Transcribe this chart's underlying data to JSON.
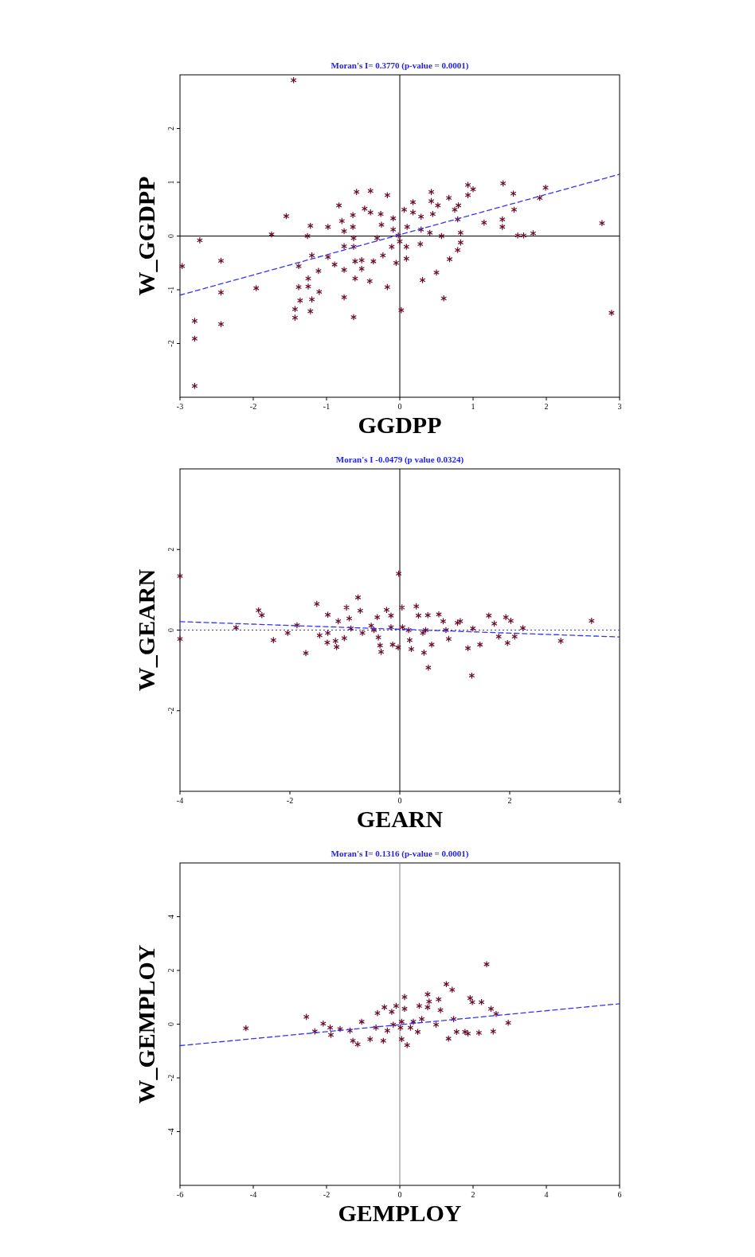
{
  "chart_data": [
    {
      "type": "scatter",
      "title": "Moran's I= 0.3770  (p-value = 0.0001)",
      "xlabel": "GGDPP",
      "ylabel": "W_GGDPP",
      "xlim": [
        -3,
        3
      ],
      "ylim": [
        -3,
        3
      ],
      "xticks": [
        -3,
        -2,
        -1,
        0,
        1,
        2,
        3
      ],
      "yticks": [
        -2,
        -1,
        0,
        1,
        2
      ],
      "marker": "cross",
      "grid": false,
      "ref_lines": [
        {
          "axis": "x",
          "value": 0,
          "color": "#000000",
          "line_style": "solid"
        },
        {
          "axis": "y",
          "value": 0,
          "color": "#000000",
          "line_style": "solid"
        }
      ],
      "series": [
        {
          "type": "scatter",
          "color": "#6b0a2a",
          "x": [
            -1.45,
            -2.73,
            -2.97,
            -2.44,
            -2.44,
            -2.44,
            -2.8,
            -2.8,
            -2.8,
            -1.96,
            -1.75,
            -1.55,
            -1.38,
            -1.38,
            -1.36,
            -1.43,
            -1.43,
            -1.25,
            -1.25,
            -1.22,
            -1.26,
            -1.2,
            -1.2,
            -1.22,
            -1.11,
            -1.1,
            -0.98,
            -0.98,
            -0.89,
            -0.83,
            -0.79,
            -0.76,
            -0.76,
            -0.76,
            -0.76,
            -0.64,
            -0.64,
            -0.63,
            -0.63,
            -0.61,
            -0.61,
            -0.63,
            -0.59,
            -0.52,
            -0.52,
            -0.48,
            -0.41,
            -0.4,
            -0.4,
            -0.36,
            -0.31,
            -0.26,
            -0.25,
            -0.23,
            -0.17,
            -0.17,
            -0.09,
            -0.09,
            -0.11,
            -0.05,
            -0.02,
            0.0,
            0.02,
            0.06,
            0.09,
            0.09,
            0.1,
            0.18,
            0.18,
            0.29,
            0.29,
            0.28,
            0.31,
            0.43,
            0.43,
            0.45,
            0.41,
            0.52,
            0.5,
            0.57,
            0.6,
            0.67,
            0.68,
            0.75,
            0.79,
            0.8,
            0.83,
            0.83,
            0.79,
            0.93,
            0.93,
            1.0,
            1.15,
            1.41,
            1.4,
            1.4,
            1.55,
            1.56,
            1.61,
            1.69,
            1.82,
            1.91,
            1.99,
            2.76,
            2.89
          ],
          "values": [
            2.9,
            -0.08,
            -0.56,
            -0.46,
            -1.05,
            -1.64,
            -1.58,
            -1.91,
            -2.79,
            -0.97,
            0.03,
            0.37,
            -0.56,
            -0.95,
            -1.2,
            -1.36,
            -1.52,
            -0.79,
            -0.94,
            0.19,
            0.0,
            -0.36,
            -1.18,
            -1.4,
            -0.65,
            -1.04,
            0.17,
            -0.39,
            -0.53,
            0.57,
            0.28,
            0.09,
            -0.19,
            -0.63,
            -1.14,
            0.39,
            0.17,
            -0.04,
            -0.2,
            -0.47,
            -0.79,
            -1.51,
            0.82,
            -0.45,
            -0.61,
            0.51,
            -0.84,
            0.84,
            0.44,
            -0.47,
            -0.04,
            0.41,
            0.21,
            -0.36,
            0.76,
            -0.95,
            0.33,
            0.12,
            -0.2,
            -0.5,
            0.01,
            -0.1,
            -1.38,
            0.49,
            -0.2,
            -0.42,
            0.17,
            0.63,
            0.44,
            0.36,
            0.12,
            -0.15,
            -0.82,
            0.82,
            0.65,
            0.41,
            0.06,
            0.57,
            -0.68,
            0.0,
            -1.16,
            0.71,
            -0.43,
            0.49,
            0.31,
            0.57,
            0.06,
            -0.12,
            -0.26,
            0.95,
            0.76,
            0.87,
            0.25,
            0.98,
            0.31,
            0.17,
            0.79,
            0.49,
            0.01,
            0.01,
            0.05,
            0.71,
            0.9,
            0.24,
            -1.43
          ]
        },
        {
          "type": "line",
          "color": "#3333ff",
          "line_style": "dashed",
          "marker": "none",
          "x": [
            -3,
            3
          ],
          "values": [
            -1.1,
            1.15
          ]
        }
      ]
    },
    {
      "type": "scatter",
      "title": "Moran's I   -0.0479 (p value    0.0324)",
      "xlabel": "GEARN",
      "ylabel": "W_GEARN",
      "xlim": [
        -4,
        4
      ],
      "ylim": [
        -4,
        4
      ],
      "xticks": [
        -4,
        -2,
        0,
        2,
        4
      ],
      "yticks": [
        -2,
        0,
        2
      ],
      "marker": "cross",
      "grid": false,
      "ref_lines": [
        {
          "axis": "x",
          "value": 0,
          "color": "#000000",
          "line_style": "solid"
        },
        {
          "axis": "y",
          "value": 0,
          "color": "#3333ff",
          "line_style": "dotted"
        }
      ],
      "series": [
        {
          "type": "scatter",
          "color": "#6b0a2a",
          "x": [
            -4.0,
            -4.0,
            -2.98,
            -2.57,
            -2.51,
            -2.3,
            -2.04,
            -1.87,
            -1.71,
            -1.51,
            -1.46,
            -1.31,
            -1.31,
            -1.32,
            -1.15,
            -1.17,
            -1.12,
            -1.01,
            -0.97,
            -0.92,
            -0.76,
            -0.72,
            -0.68,
            -0.52,
            -0.41,
            -0.39,
            -0.36,
            -0.34,
            -0.24,
            -0.16,
            -0.13,
            -0.02,
            0.04,
            -0.03,
            0.05,
            0.18,
            0.21,
            0.3,
            0.34,
            0.42,
            0.44,
            0.52,
            0.51,
            0.58,
            0.71,
            0.79,
            0.89,
            1.1,
            1.24,
            1.31,
            1.33,
            1.46,
            1.62,
            1.72,
            1.8,
            1.93,
            1.96,
            2.02,
            2.09,
            2.24,
            2.93,
            3.49,
            -0.89,
            -0.47,
            -0.16,
            0.16,
            0.47,
            0.84,
            1.05
          ],
          "values": [
            1.34,
            -0.22,
            0.06,
            0.49,
            0.37,
            -0.25,
            -0.07,
            0.12,
            -0.57,
            0.65,
            -0.13,
            0.38,
            -0.07,
            -0.31,
            -0.42,
            -0.27,
            0.22,
            -0.2,
            0.56,
            0.29,
            0.81,
            0.48,
            -0.07,
            0.11,
            0.32,
            -0.18,
            -0.38,
            -0.54,
            0.5,
            0.36,
            -0.36,
            1.4,
            0.56,
            -0.43,
            0.07,
            -0.25,
            -0.47,
            0.59,
            0.36,
            -0.07,
            -0.56,
            -0.93,
            0.37,
            -0.36,
            0.39,
            0.22,
            -0.22,
            0.22,
            -0.45,
            -1.13,
            0.04,
            -0.36,
            0.36,
            0.16,
            -0.16,
            0.32,
            -0.32,
            0.23,
            -0.16,
            0.05,
            -0.27,
            0.23,
            0.04,
            0.0,
            0.07,
            0.0,
            0.0,
            0.0,
            0.18
          ]
        },
        {
          "type": "line",
          "color": "#3333ff",
          "line_style": "dashed",
          "marker": "none",
          "x": [
            -4,
            4
          ],
          "values": [
            0.21,
            -0.17
          ]
        }
      ]
    },
    {
      "type": "scatter",
      "title": "Moran's I= 0.1316  (p-value = 0.0001)",
      "xlabel": "GEMPLOY",
      "ylabel": "W_GEMPLOY",
      "xlim": [
        -6,
        6
      ],
      "ylim": [
        -6,
        6
      ],
      "xticks": [
        -6,
        -4,
        -2,
        0,
        2,
        4,
        6
      ],
      "yticks": [
        -4,
        -2,
        0,
        2,
        4
      ],
      "marker": "cross",
      "grid": false,
      "ref_lines": [
        {
          "axis": "x",
          "value": 0,
          "color": "#808080",
          "line_style": "solid"
        }
      ],
      "series": [
        {
          "type": "scatter",
          "color": "#6b0a2a",
          "x": [
            -4.2,
            -2.55,
            -2.32,
            -2.09,
            -1.88,
            -1.9,
            -1.63,
            -1.36,
            -1.28,
            -1.15,
            -1.04,
            -0.81,
            -0.65,
            -0.61,
            -0.45,
            -0.42,
            -0.22,
            -0.1,
            0.02,
            0.05,
            0.2,
            0.13,
            0.13,
            0.37,
            0.49,
            0.53,
            0.76,
            0.8,
            0.76,
            0.99,
            1.06,
            1.11,
            1.33,
            1.27,
            1.43,
            1.47,
            1.55,
            1.78,
            1.86,
            1.92,
            1.98,
            2.16,
            2.23,
            2.37,
            2.49,
            2.55,
            2.63,
            2.96,
            -0.18,
            0.05,
            0.29,
            -0.34,
            0.6
          ],
          "values": [
            -0.15,
            0.27,
            -0.27,
            0.02,
            -0.4,
            -0.13,
            -0.18,
            -0.24,
            -0.62,
            -0.75,
            0.09,
            -0.56,
            -0.13,
            0.41,
            -0.62,
            0.63,
            0.46,
            0.68,
            -0.13,
            -0.56,
            -0.78,
            1.01,
            0.57,
            0.09,
            -0.29,
            0.68,
            1.11,
            0.84,
            0.63,
            -0.02,
            0.92,
            0.52,
            -0.54,
            1.49,
            1.28,
            0.19,
            -0.29,
            -0.29,
            -0.35,
            0.97,
            0.82,
            -0.32,
            0.82,
            2.23,
            0.57,
            -0.27,
            0.38,
            0.05,
            -0.02,
            0.09,
            -0.13,
            -0.24,
            0.19
          ]
        },
        {
          "type": "line",
          "color": "#3333ff",
          "line_style": "dashed",
          "marker": "none",
          "x": [
            -6,
            6
          ],
          "values": [
            -0.8,
            0.76
          ]
        }
      ]
    }
  ]
}
